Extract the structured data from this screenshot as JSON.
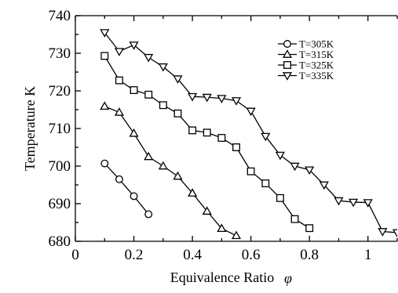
{
  "chart_data": {
    "type": "line",
    "xlabel": "Equivalence Ratio",
    "xlabel_symbol": "φ",
    "ylabel": "Temperature K",
    "xlim": [
      0,
      1.1
    ],
    "ylim": [
      680,
      740
    ],
    "x_ticks": [
      "0",
      "0.2",
      "0.4",
      "0.6",
      "0.8",
      "1"
    ],
    "y_ticks": [
      "680",
      "690",
      "700",
      "710",
      "720",
      "730",
      "740"
    ],
    "grid": false,
    "legend_position": "top-right",
    "series": [
      {
        "name": "T=305K",
        "marker": "circle",
        "x": [
          0.1,
          0.15,
          0.2,
          0.25
        ],
        "y": [
          700.7,
          696.5,
          692.0,
          687.2
        ]
      },
      {
        "name": "T=315K",
        "marker": "triangle-up",
        "x": [
          0.1,
          0.15,
          0.2,
          0.25,
          0.3,
          0.35,
          0.4,
          0.45,
          0.5,
          0.55
        ],
        "y": [
          715.9,
          714.3,
          708.7,
          702.5,
          700.0,
          697.3,
          692.8,
          688.0,
          683.4,
          681.5
        ]
      },
      {
        "name": "T=325K",
        "marker": "square",
        "x": [
          0.1,
          0.15,
          0.2,
          0.25,
          0.3,
          0.35,
          0.4,
          0.45,
          0.5,
          0.55,
          0.6,
          0.65,
          0.7,
          0.75,
          0.8
        ],
        "y": [
          729.3,
          722.8,
          720.2,
          719.0,
          716.2,
          714.0,
          709.5,
          708.9,
          707.5,
          705.0,
          698.6,
          695.4,
          691.5,
          685.9,
          683.5
        ]
      },
      {
        "name": "T=335K",
        "marker": "triangle-down",
        "x": [
          0.1,
          0.15,
          0.2,
          0.25,
          0.3,
          0.35,
          0.4,
          0.45,
          0.5,
          0.55,
          0.6,
          0.65,
          0.7,
          0.75,
          0.8,
          0.85,
          0.9,
          0.95,
          1.0,
          1.05,
          1.1
        ],
        "y": [
          735.5,
          730.5,
          732.2,
          728.9,
          726.4,
          723.2,
          718.5,
          718.3,
          718.0,
          717.4,
          714.6,
          707.9,
          702.9,
          700.0,
          699.0,
          695.0,
          690.8,
          690.4,
          690.3,
          682.6,
          682.3
        ]
      }
    ]
  }
}
